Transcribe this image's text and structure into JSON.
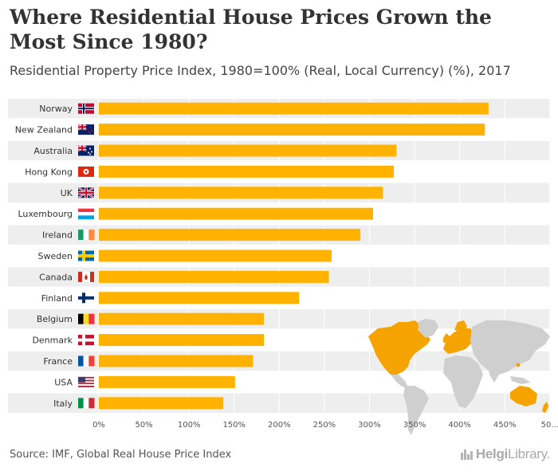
{
  "title": "Where Residential House Prices Grown the Most Since 1980?",
  "subtitle": "Residential Property Price Index, 1980=100% (Real, Local Currency) (%), 2017",
  "source": "Source: IMF, Global Real House Price Index",
  "logo": {
    "bold": "Helgi",
    "light": "Library."
  },
  "colors": {
    "bar": "#FFB300",
    "row_band": "#EEEEEE",
    "map_highlight": "#F5A300",
    "map_base": "#CFCFCF",
    "text": "#333333"
  },
  "chart_data": {
    "type": "bar",
    "orientation": "horizontal",
    "title": "Where Residential House Prices Grown the Most Since 1980?",
    "subtitle": "Residential Property Price Index, 1980=100% (Real, Local Currency) (%), 2017",
    "categories": [
      "Norway",
      "New Zealand",
      "Australia",
      "Hong Kong",
      "UK",
      "Luxembourg",
      "Ireland",
      "Sweden",
      "Canada",
      "Finland",
      "Belgium",
      "Denmark",
      "France",
      "USA",
      "Italy"
    ],
    "values": [
      432,
      428,
      330,
      327,
      315,
      304,
      290,
      258,
      255,
      222,
      183,
      183,
      171,
      151,
      138
    ],
    "xlim": [
      0,
      500
    ],
    "xticks": [
      "0%",
      "50%",
      "100%",
      "150%",
      "200%",
      "250%",
      "300%",
      "350%",
      "400%",
      "450%",
      "50..."
    ],
    "grid": true,
    "legend": "none"
  }
}
